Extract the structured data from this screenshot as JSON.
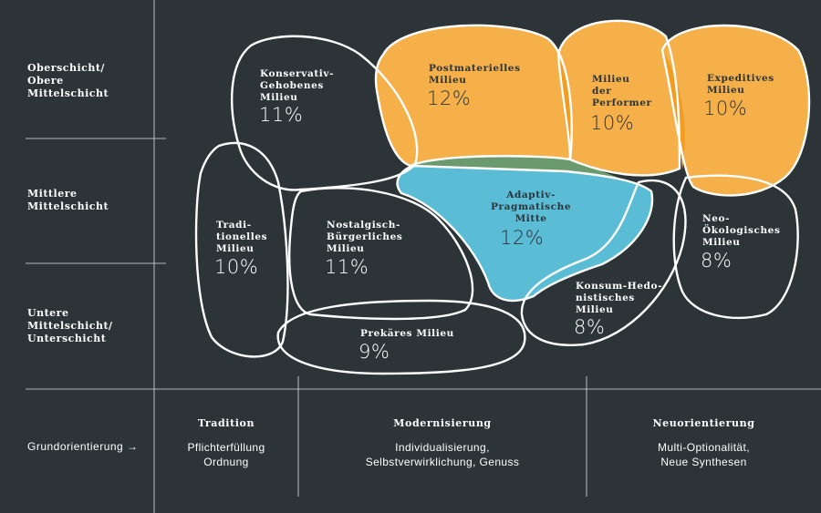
{
  "rows": [
    {
      "label": "Oberschicht/\nObere\nMittelschicht"
    },
    {
      "label": "Mittlere\nMittelschicht"
    },
    {
      "label": "Untere\nMittelschicht/\nUnterschicht"
    }
  ],
  "milieus": [
    {
      "name": "Konservativ-\nGehobenes\nMilieu",
      "pct": "11%"
    },
    {
      "name": "Postmaterielles\nMilieu",
      "pct": "12%"
    },
    {
      "name": "Milieu\nder\nPerformer",
      "pct": "10%"
    },
    {
      "name": "Expeditives\nMilieu",
      "pct": "10%"
    },
    {
      "name": "Tradi-\ntionelles\nMilieu",
      "pct": "10%"
    },
    {
      "name": "Nostalgisch-\nBürgerliches\nMilieu",
      "pct": "11%"
    },
    {
      "name": "Adaptiv-\nPragmatische\nMitte",
      "pct": "12%"
    },
    {
      "name": "Neo-\nÖkologisches\nMilieu",
      "pct": "8%"
    },
    {
      "name": "Konsum-Hedo-\nnistisches\nMilieu",
      "pct": "8%"
    },
    {
      "name": "Prekäres Milieu",
      "pct": "9%"
    }
  ],
  "baseline": {
    "label": "Grundorientierung →",
    "columns": [
      {
        "title": "Tradition",
        "desc": "Pflichterfüllung\nOrdnung"
      },
      {
        "title": "Modernisierung",
        "desc": "Individualisierung,\nSelbstverwirklichung, Genuss"
      },
      {
        "title": "Neuorientierung",
        "desc": "Multi-Optionalität,\nNeue Synthesen"
      }
    ]
  },
  "colors": {
    "background": "#2c3438",
    "orange": "#f5b04a",
    "orange_overlap": "#f29d1f",
    "blue": "#5bbcd6",
    "green": "#6a9a6e",
    "outline": "#ffffff"
  }
}
